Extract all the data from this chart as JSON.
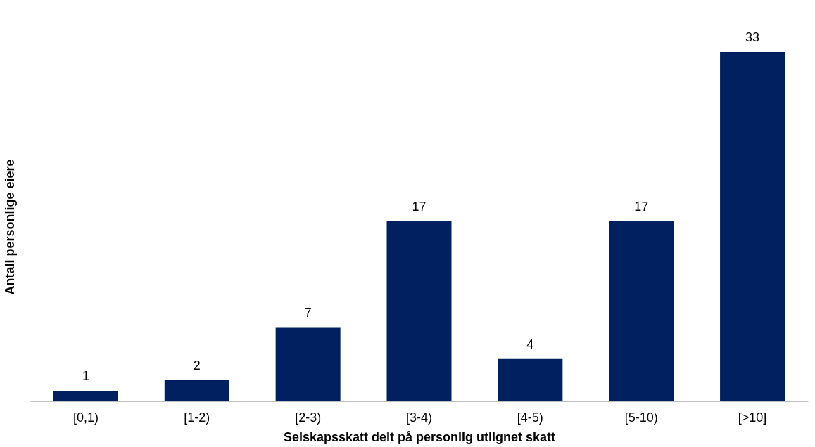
{
  "chart_data": {
    "type": "bar",
    "xlabel": "Selskapsskatt delt på personlig utlignet skatt",
    "ylabel": "Antall personlige eiere",
    "categories": [
      "[0,1)",
      "[1-2)",
      "[2-3)",
      "[3-4)",
      "[4-5)",
      "[5-10)",
      "[>10]"
    ],
    "values": [
      1,
      2,
      7,
      17,
      4,
      17,
      33
    ],
    "color": "#002060",
    "ylim": [
      0,
      33
    ],
    "data_labels": true,
    "tick_labels": "x",
    "grid": false
  }
}
